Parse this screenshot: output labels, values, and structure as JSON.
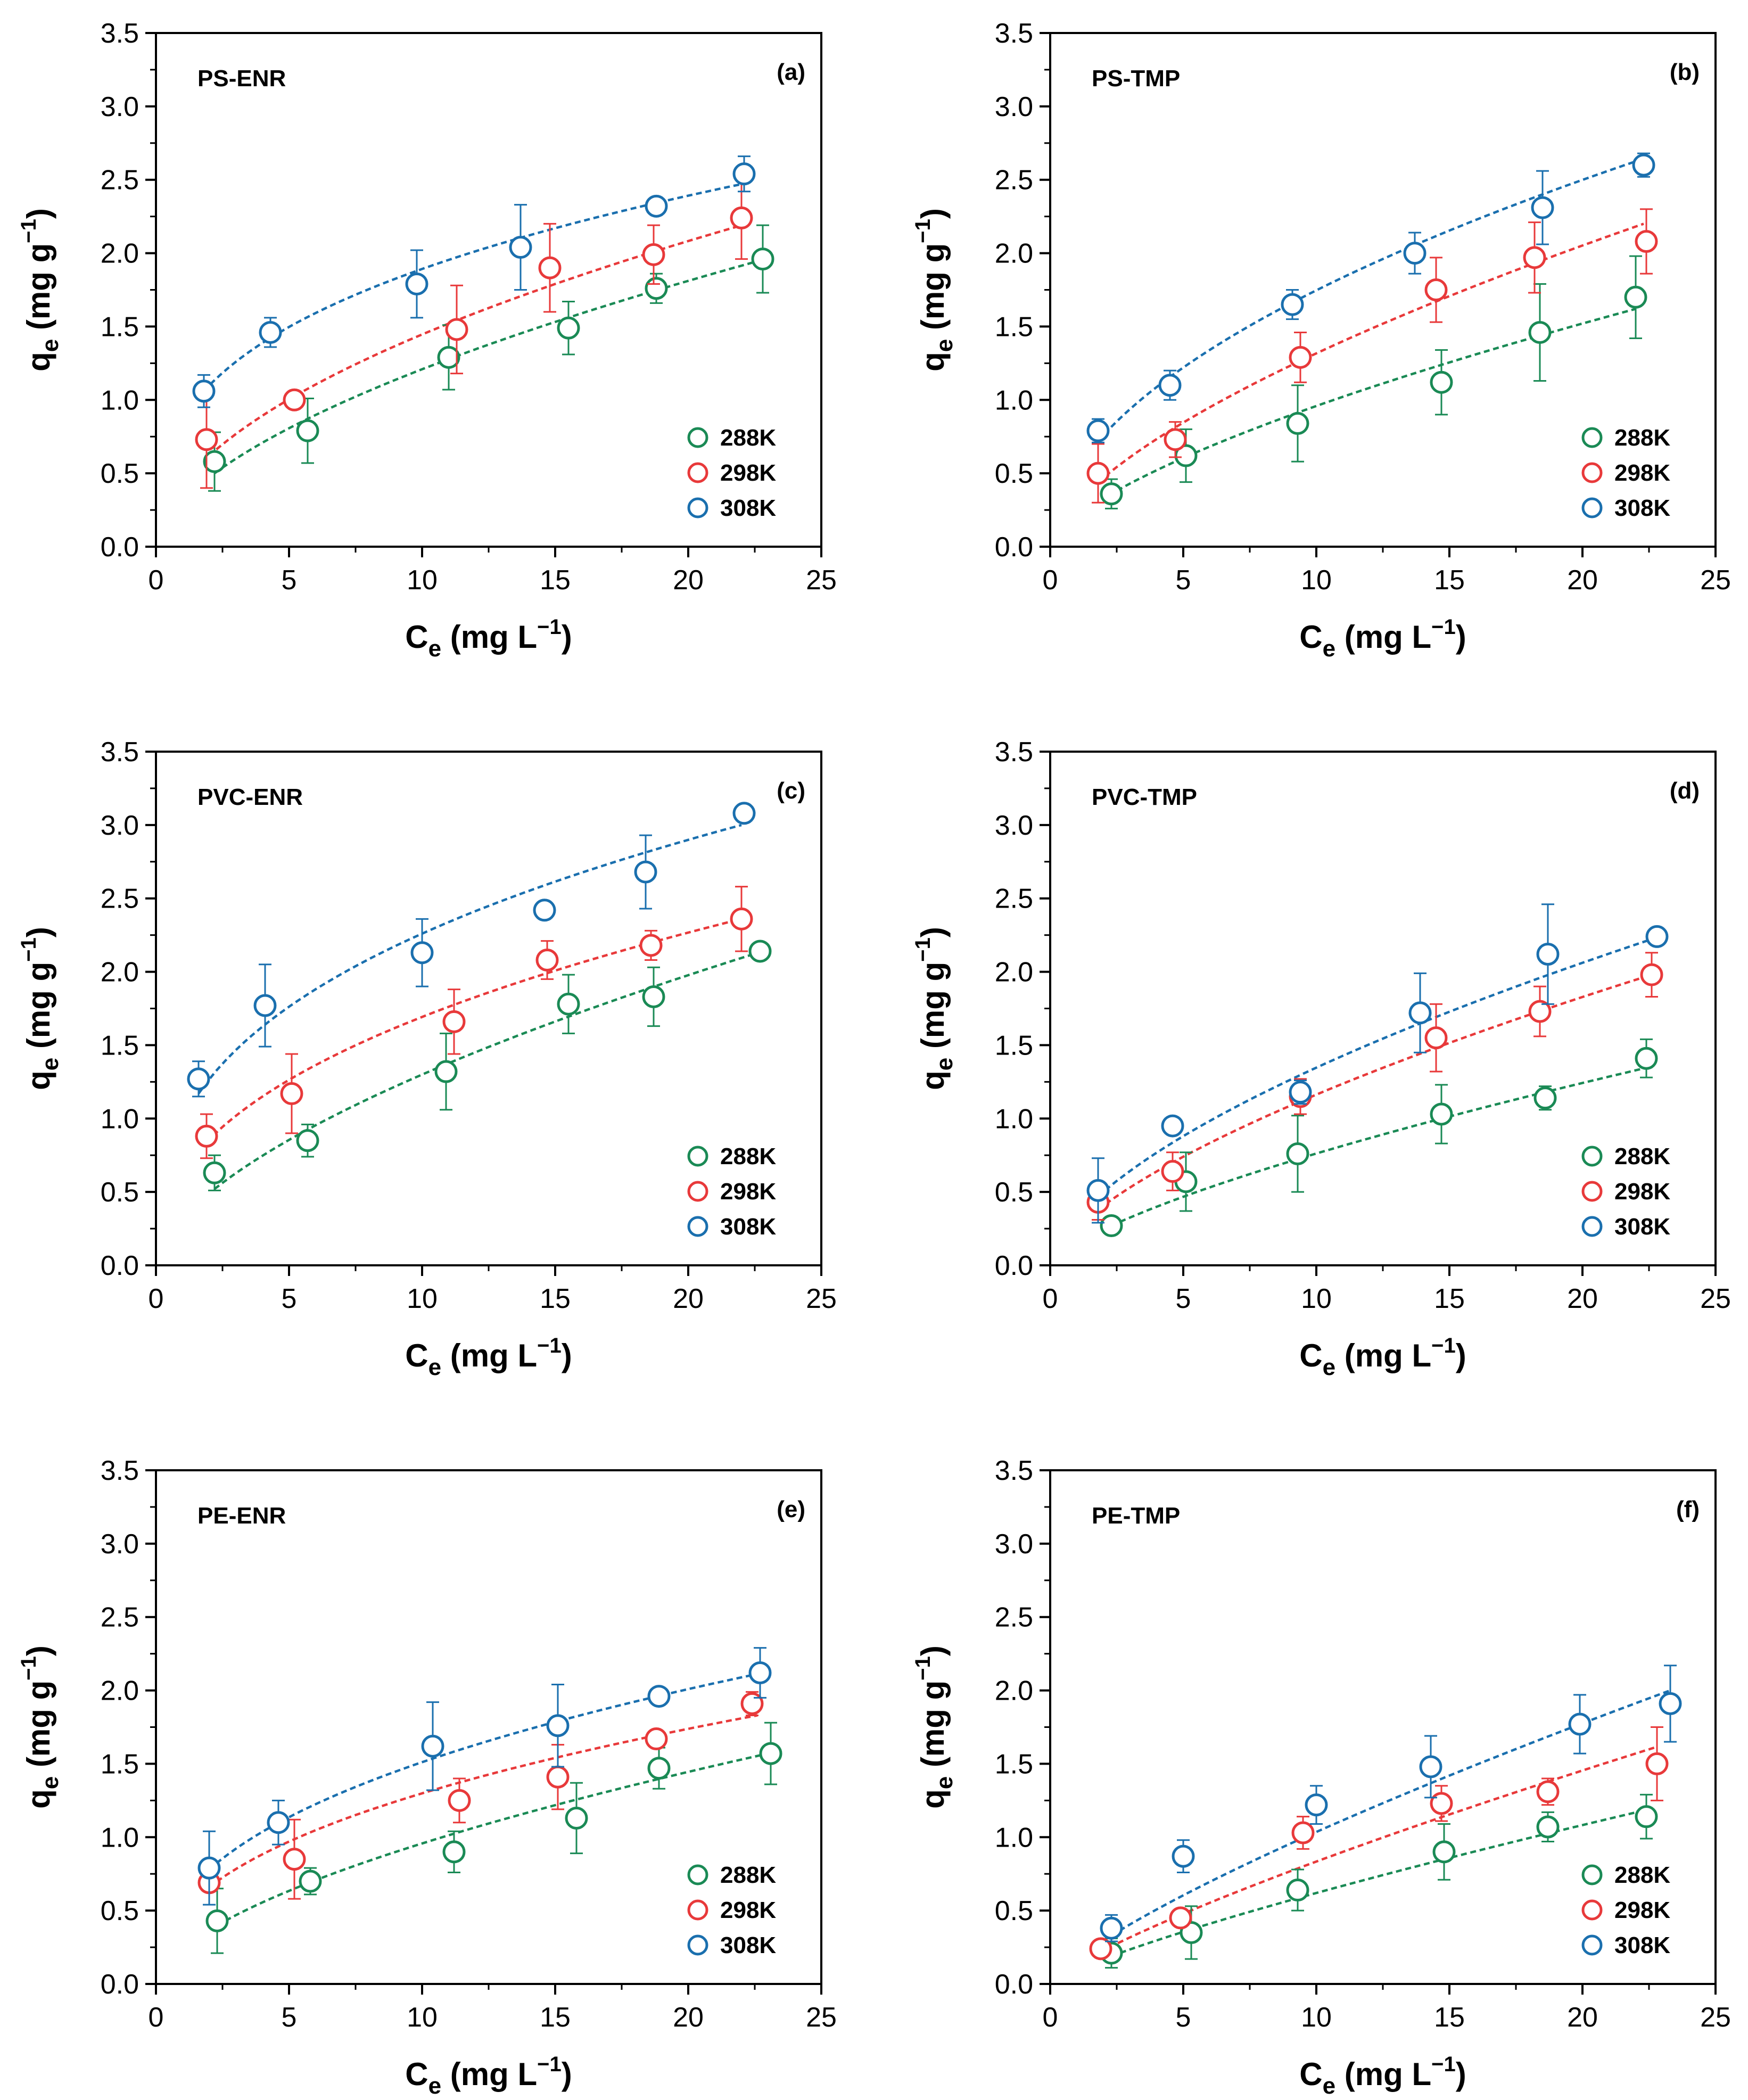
{
  "figure": {
    "x_label_main": "C",
    "x_label_sub": "e",
    "x_label_units": " (mg L",
    "x_label_exp": "−1",
    "x_label_close": ")",
    "y_label_main": "q",
    "y_label_sub": "e",
    "y_label_units": " (mg g",
    "y_label_exp": "−1",
    "y_label_close": ")"
  },
  "colors": {
    "288K": "#1a8a55",
    "298K": "#e8393a",
    "308K": "#1a6fae"
  },
  "chart_data": [
    {
      "type": "scatter",
      "title": "PS-ENR",
      "tag": "(a)",
      "xlim": [
        0,
        25
      ],
      "ylim": [
        0,
        3.5
      ],
      "xticks": [
        "0",
        "5",
        "10",
        "15",
        "20",
        "25"
      ],
      "yticks": [
        "0.0",
        "0.5",
        "1.0",
        "1.5",
        "2.0",
        "2.5",
        "3.0",
        "3.5"
      ],
      "legend_position": "bottom-right",
      "series": [
        {
          "name": "288K",
          "fit": [
            2.2,
            0.5,
            22.7,
            1.95
          ],
          "points": [
            {
              "x": 2.2,
              "y": 0.58,
              "err": 0.2
            },
            {
              "x": 5.7,
              "y": 0.79,
              "err": 0.22
            },
            {
              "x": 11.0,
              "y": 1.29,
              "err": 0.22
            },
            {
              "x": 15.5,
              "y": 1.49,
              "err": 0.18
            },
            {
              "x": 18.8,
              "y": 1.76,
              "err": 0.1
            },
            {
              "x": 22.8,
              "y": 1.96,
              "err": 0.23
            }
          ]
        },
        {
          "name": "298K",
          "fit": [
            2.0,
            0.62,
            22.2,
            2.2
          ],
          "points": [
            {
              "x": 1.9,
              "y": 0.73,
              "err": 0.33
            },
            {
              "x": 5.2,
              "y": 1.0,
              "err": 0.0
            },
            {
              "x": 11.3,
              "y": 1.48,
              "err": 0.3
            },
            {
              "x": 14.8,
              "y": 1.9,
              "err": 0.3
            },
            {
              "x": 18.7,
              "y": 1.99,
              "err": 0.2
            },
            {
              "x": 22.0,
              "y": 2.24,
              "err": 0.28
            }
          ]
        },
        {
          "name": "308K",
          "fit": [
            1.8,
            1.06,
            22.0,
            2.47
          ],
          "points": [
            {
              "x": 1.8,
              "y": 1.06,
              "err": 0.11
            },
            {
              "x": 4.3,
              "y": 1.46,
              "err": 0.1
            },
            {
              "x": 9.8,
              "y": 1.79,
              "err": 0.23
            },
            {
              "x": 13.7,
              "y": 2.04,
              "err": 0.29
            },
            {
              "x": 18.8,
              "y": 2.32,
              "err": 0.06
            },
            {
              "x": 22.1,
              "y": 2.54,
              "err": 0.12
            }
          ]
        }
      ]
    },
    {
      "type": "scatter",
      "title": "PS-TMP",
      "tag": "(b)",
      "xlim": [
        0,
        25
      ],
      "ylim": [
        0,
        3.5
      ],
      "xticks": [
        "0",
        "5",
        "10",
        "15",
        "20",
        "25"
      ],
      "yticks": [
        "0.0",
        "0.5",
        "1.0",
        "1.5",
        "2.0",
        "2.5",
        "3.0",
        "3.5"
      ],
      "legend_position": "bottom-right",
      "series": [
        {
          "name": "288K",
          "fit": [
            2.2,
            0.35,
            22.0,
            1.62
          ],
          "points": [
            {
              "x": 2.3,
              "y": 0.36,
              "err": 0.1
            },
            {
              "x": 5.1,
              "y": 0.62,
              "err": 0.18
            },
            {
              "x": 9.3,
              "y": 0.84,
              "err": 0.26
            },
            {
              "x": 14.7,
              "y": 1.12,
              "err": 0.22
            },
            {
              "x": 18.4,
              "y": 1.46,
              "err": 0.33
            },
            {
              "x": 22.0,
              "y": 1.7,
              "err": 0.28
            }
          ]
        },
        {
          "name": "298K",
          "fit": [
            1.8,
            0.44,
            22.3,
            2.2
          ],
          "points": [
            {
              "x": 1.8,
              "y": 0.5,
              "err": 0.2
            },
            {
              "x": 4.7,
              "y": 0.73,
              "err": 0.12
            },
            {
              "x": 9.4,
              "y": 1.29,
              "err": 0.17
            },
            {
              "x": 14.5,
              "y": 1.75,
              "err": 0.22
            },
            {
              "x": 18.2,
              "y": 1.97,
              "err": 0.24
            },
            {
              "x": 22.4,
              "y": 2.08,
              "err": 0.22
            }
          ]
        },
        {
          "name": "308K",
          "fit": [
            1.8,
            0.72,
            22.4,
            2.65
          ],
          "points": [
            {
              "x": 1.8,
              "y": 0.79,
              "err": 0.08
            },
            {
              "x": 4.5,
              "y": 1.1,
              "err": 0.1
            },
            {
              "x": 9.1,
              "y": 1.65,
              "err": 0.1
            },
            {
              "x": 13.7,
              "y": 2.0,
              "err": 0.14
            },
            {
              "x": 18.5,
              "y": 2.31,
              "err": 0.25
            },
            {
              "x": 22.3,
              "y": 2.6,
              "err": 0.08
            }
          ]
        }
      ]
    },
    {
      "type": "scatter",
      "title": "PVC-ENR",
      "tag": "(c)",
      "xlim": [
        0,
        25
      ],
      "ylim": [
        0,
        3.5
      ],
      "xticks": [
        "0",
        "5",
        "10",
        "15",
        "20",
        "25"
      ],
      "yticks": [
        "0.0",
        "0.5",
        "1.0",
        "1.5",
        "2.0",
        "2.5",
        "3.0",
        "3.5"
      ],
      "legend_position": "bottom-right",
      "series": [
        {
          "name": "288K",
          "fit": [
            2.2,
            0.52,
            22.8,
            2.14
          ],
          "points": [
            {
              "x": 2.2,
              "y": 0.63,
              "err": 0.12
            },
            {
              "x": 5.7,
              "y": 0.85,
              "err": 0.11
            },
            {
              "x": 10.9,
              "y": 1.32,
              "err": 0.26
            },
            {
              "x": 15.5,
              "y": 1.78,
              "err": 0.2
            },
            {
              "x": 18.7,
              "y": 1.83,
              "err": 0.2
            },
            {
              "x": 22.7,
              "y": 2.14,
              "err": 0.03
            }
          ]
        },
        {
          "name": "298K",
          "fit": [
            1.9,
            0.84,
            22.0,
            2.36
          ],
          "points": [
            {
              "x": 1.9,
              "y": 0.88,
              "err": 0.15
            },
            {
              "x": 5.1,
              "y": 1.17,
              "err": 0.27
            },
            {
              "x": 11.2,
              "y": 1.66,
              "err": 0.22
            },
            {
              "x": 14.7,
              "y": 2.08,
              "err": 0.13
            },
            {
              "x": 18.6,
              "y": 2.18,
              "err": 0.1
            },
            {
              "x": 22.0,
              "y": 2.36,
              "err": 0.22
            }
          ]
        },
        {
          "name": "308K",
          "fit": [
            1.6,
            1.17,
            22.0,
            3.0
          ],
          "points": [
            {
              "x": 1.6,
              "y": 1.27,
              "err": 0.12
            },
            {
              "x": 4.1,
              "y": 1.77,
              "err": 0.28
            },
            {
              "x": 10.0,
              "y": 2.13,
              "err": 0.23
            },
            {
              "x": 14.6,
              "y": 2.42,
              "err": 0.06
            },
            {
              "x": 18.4,
              "y": 2.68,
              "err": 0.25
            },
            {
              "x": 22.1,
              "y": 3.08,
              "err": 0.04
            }
          ]
        }
      ]
    },
    {
      "type": "scatter",
      "title": "PVC-TMP",
      "tag": "(d)",
      "xlim": [
        0,
        25
      ],
      "ylim": [
        0,
        3.5
      ],
      "xticks": [
        "0",
        "5",
        "10",
        "15",
        "20",
        "25"
      ],
      "yticks": [
        "0.0",
        "0.5",
        "1.0",
        "1.5",
        "2.0",
        "2.5",
        "3.0",
        "3.5"
      ],
      "legend_position": "bottom-right",
      "series": [
        {
          "name": "288K",
          "fit": [
            2.3,
            0.27,
            22.5,
            1.35
          ],
          "points": [
            {
              "x": 2.3,
              "y": 0.27,
              "err": 0.05
            },
            {
              "x": 5.1,
              "y": 0.57,
              "err": 0.2
            },
            {
              "x": 9.3,
              "y": 0.76,
              "err": 0.26
            },
            {
              "x": 14.7,
              "y": 1.03,
              "err": 0.2
            },
            {
              "x": 18.6,
              "y": 1.14,
              "err": 0.08
            },
            {
              "x": 22.4,
              "y": 1.41,
              "err": 0.13
            }
          ]
        },
        {
          "name": "298K",
          "fit": [
            1.8,
            0.38,
            22.6,
            1.98
          ],
          "points": [
            {
              "x": 1.8,
              "y": 0.43,
              "err": 0.12
            },
            {
              "x": 4.6,
              "y": 0.64,
              "err": 0.13
            },
            {
              "x": 9.4,
              "y": 1.15,
              "err": 0.12
            },
            {
              "x": 14.5,
              "y": 1.55,
              "err": 0.23
            },
            {
              "x": 18.4,
              "y": 1.73,
              "err": 0.17
            },
            {
              "x": 22.6,
              "y": 1.98,
              "err": 0.15
            }
          ]
        },
        {
          "name": "308K",
          "fit": [
            1.8,
            0.47,
            22.9,
            2.24
          ],
          "points": [
            {
              "x": 1.8,
              "y": 0.51,
              "err": 0.22
            },
            {
              "x": 4.6,
              "y": 0.95,
              "err": 0.03
            },
            {
              "x": 9.4,
              "y": 1.18,
              "err": 0.08
            },
            {
              "x": 13.9,
              "y": 1.72,
              "err": 0.27
            },
            {
              "x": 18.7,
              "y": 2.12,
              "err": 0.34
            },
            {
              "x": 22.8,
              "y": 2.24,
              "err": 0.02
            }
          ]
        }
      ]
    },
    {
      "type": "scatter",
      "title": "PE-ENR",
      "tag": "(e)",
      "xlim": [
        0,
        25
      ],
      "ylim": [
        0,
        3.5
      ],
      "xticks": [
        "0",
        "5",
        "10",
        "15",
        "20",
        "25"
      ],
      "yticks": [
        "0.0",
        "0.5",
        "1.0",
        "1.5",
        "2.0",
        "2.5",
        "3.0",
        "3.5"
      ],
      "legend_position": "bottom-right",
      "series": [
        {
          "name": "288K",
          "fit": [
            2.3,
            0.4,
            23.0,
            1.57
          ],
          "points": [
            {
              "x": 2.3,
              "y": 0.43,
              "err": 0.22
            },
            {
              "x": 5.8,
              "y": 0.7,
              "err": 0.09
            },
            {
              "x": 11.2,
              "y": 0.9,
              "err": 0.14
            },
            {
              "x": 15.8,
              "y": 1.13,
              "err": 0.24
            },
            {
              "x": 18.9,
              "y": 1.47,
              "err": 0.14
            },
            {
              "x": 23.1,
              "y": 1.57,
              "err": 0.21
            }
          ]
        },
        {
          "name": "298K",
          "fit": [
            2.0,
            0.66,
            22.6,
            1.83
          ],
          "points": [
            {
              "x": 2.0,
              "y": 0.69,
              "err": 0.06
            },
            {
              "x": 5.2,
              "y": 0.85,
              "err": 0.27
            },
            {
              "x": 11.4,
              "y": 1.25,
              "err": 0.15
            },
            {
              "x": 15.1,
              "y": 1.41,
              "err": 0.22
            },
            {
              "x": 18.8,
              "y": 1.67,
              "err": 0.05
            },
            {
              "x": 22.4,
              "y": 1.91,
              "err": 0.08
            }
          ]
        },
        {
          "name": "308K",
          "fit": [
            2.0,
            0.78,
            22.8,
            2.12
          ],
          "points": [
            {
              "x": 2.0,
              "y": 0.79,
              "err": 0.25
            },
            {
              "x": 4.6,
              "y": 1.1,
              "err": 0.15
            },
            {
              "x": 10.4,
              "y": 1.62,
              "err": 0.3
            },
            {
              "x": 15.1,
              "y": 1.76,
              "err": 0.28
            },
            {
              "x": 18.9,
              "y": 1.96,
              "err": 0.04
            },
            {
              "x": 22.7,
              "y": 2.12,
              "err": 0.17
            }
          ]
        }
      ]
    },
    {
      "type": "scatter",
      "title": "PE-TMP",
      "tag": "(f)",
      "xlim": [
        0,
        25
      ],
      "ylim": [
        0,
        3.5
      ],
      "xticks": [
        "0",
        "5",
        "10",
        "15",
        "20",
        "25"
      ],
      "yticks": [
        "0.0",
        "0.5",
        "1.0",
        "1.5",
        "2.0",
        "2.5",
        "3.0",
        "3.5"
      ],
      "legend_position": "bottom-right",
      "series": [
        {
          "name": "288K",
          "fit": [
            2.3,
            0.19,
            22.5,
            1.19
          ],
          "points": [
            {
              "x": 2.3,
              "y": 0.21,
              "err": 0.1
            },
            {
              "x": 5.3,
              "y": 0.35,
              "err": 0.18
            },
            {
              "x": 9.3,
              "y": 0.64,
              "err": 0.14
            },
            {
              "x": 14.8,
              "y": 0.9,
              "err": 0.19
            },
            {
              "x": 18.7,
              "y": 1.07,
              "err": 0.1
            },
            {
              "x": 22.4,
              "y": 1.14,
              "err": 0.15
            }
          ]
        },
        {
          "name": "298K",
          "fit": [
            1.9,
            0.22,
            22.7,
            1.61
          ],
          "points": [
            {
              "x": 1.9,
              "y": 0.24,
              "err": 0.0
            },
            {
              "x": 4.9,
              "y": 0.45,
              "err": 0.05
            },
            {
              "x": 9.5,
              "y": 1.03,
              "err": 0.11
            },
            {
              "x": 14.7,
              "y": 1.23,
              "err": 0.12
            },
            {
              "x": 18.7,
              "y": 1.31,
              "err": 0.09
            },
            {
              "x": 22.8,
              "y": 1.5,
              "err": 0.25
            }
          ]
        },
        {
          "name": "308K",
          "fit": [
            2.3,
            0.33,
            23.3,
            2.0
          ],
          "points": [
            {
              "x": 2.3,
              "y": 0.38,
              "err": 0.09
            },
            {
              "x": 5.0,
              "y": 0.87,
              "err": 0.11
            },
            {
              "x": 10.0,
              "y": 1.22,
              "err": 0.13
            },
            {
              "x": 14.3,
              "y": 1.48,
              "err": 0.21
            },
            {
              "x": 19.9,
              "y": 1.77,
              "err": 0.2
            },
            {
              "x": 23.3,
              "y": 1.91,
              "err": 0.26
            }
          ]
        }
      ]
    }
  ]
}
